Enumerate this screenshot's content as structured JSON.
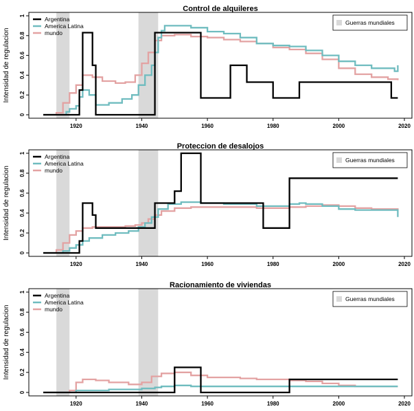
{
  "colors": {
    "argentina": "#000000",
    "latam": "#6fbcbf",
    "world": "#e3a2a2",
    "wars": "#d9d9d9"
  },
  "shared": {
    "x_ticks": [
      1920,
      1940,
      1960,
      1980,
      2000,
      2020
    ],
    "y_ticks": [
      "0",
      "0.2",
      "0.4",
      "0.6",
      "0.8",
      "1"
    ],
    "xlim": [
      1908,
      2022
    ],
    "ylim": [
      0,
      1
    ],
    "war_periods": [
      [
        1914,
        1918
      ],
      [
        1939,
        1945
      ]
    ],
    "wars_legend_label": "Guerras mundiales",
    "ylabel": "Intensidad de regulacion"
  },
  "chart_data": [
    {
      "type": "line",
      "title": "Control de alquileres",
      "ylabel": "Intensidad de regulacion",
      "xlim": [
        1908,
        2022
      ],
      "ylim": [
        0,
        1
      ],
      "legend": "top-left",
      "series": [
        {
          "name": "Argentina",
          "color": "#000000",
          "x": [
            1910,
            1920,
            1921,
            1922,
            1924,
            1925,
            1926,
            1943,
            1944,
            1957,
            1958,
            1964,
            1967,
            1972,
            1980,
            1988,
            2016,
            2018
          ],
          "y": [
            0,
            0,
            0.25,
            0.83,
            0.83,
            0.5,
            0,
            0,
            0.83,
            0.83,
            0.17,
            0.17,
            0.5,
            0.33,
            0.17,
            0.33,
            0.17,
            0.17
          ]
        },
        {
          "name": "America Latina",
          "color": "#6fbcbf",
          "x": [
            1910,
            1916,
            1917,
            1918,
            1920,
            1921,
            1922,
            1924,
            1926,
            1930,
            1934,
            1937,
            1939,
            1941,
            1943,
            1944,
            1945,
            1946,
            1947,
            1950,
            1955,
            1960,
            1965,
            1970,
            1975,
            1980,
            1985,
            1990,
            1995,
            2000,
            2005,
            2010,
            2015,
            2017,
            2018
          ],
          "y": [
            0,
            0,
            0.03,
            0.06,
            0.09,
            0.18,
            0.25,
            0.2,
            0.1,
            0.12,
            0.16,
            0.2,
            0.3,
            0.4,
            0.5,
            0.63,
            0.78,
            0.85,
            0.9,
            0.9,
            0.88,
            0.84,
            0.82,
            0.78,
            0.72,
            0.7,
            0.69,
            0.65,
            0.6,
            0.54,
            0.5,
            0.47,
            0.47,
            0.44,
            0.5
          ]
        },
        {
          "name": "mundo",
          "color": "#e3a2a2",
          "x": [
            1910,
            1914,
            1916,
            1918,
            1920,
            1922,
            1925,
            1928,
            1932,
            1935,
            1938,
            1940,
            1942,
            1944,
            1946,
            1950,
            1955,
            1960,
            1965,
            1970,
            1975,
            1980,
            1985,
            1990,
            1995,
            2000,
            2005,
            2010,
            2015,
            2018
          ],
          "y": [
            0,
            0.02,
            0.12,
            0.22,
            0.3,
            0.4,
            0.38,
            0.34,
            0.32,
            0.33,
            0.4,
            0.52,
            0.63,
            0.75,
            0.8,
            0.81,
            0.79,
            0.78,
            0.76,
            0.74,
            0.72,
            0.68,
            0.66,
            0.62,
            0.56,
            0.47,
            0.41,
            0.38,
            0.36,
            0.35
          ]
        }
      ]
    },
    {
      "type": "line",
      "title": "Proteccion de desalojos",
      "ylabel": "Intensidad de regulacion",
      "xlim": [
        1908,
        2022
      ],
      "ylim": [
        0,
        1
      ],
      "legend": "top-left",
      "series": [
        {
          "name": "Argentina",
          "color": "#000000",
          "x": [
            1910,
            1920,
            1921,
            1922,
            1924,
            1925,
            1926,
            1943,
            1944,
            1948,
            1950,
            1952,
            1957,
            1958,
            1976,
            1977,
            1985,
            2018
          ],
          "y": [
            0,
            0,
            0.12,
            0.5,
            0.5,
            0.38,
            0.25,
            0.25,
            0.5,
            0.5,
            0.62,
            1.0,
            1.0,
            0.5,
            0.5,
            0.25,
            0.75,
            0.75
          ]
        },
        {
          "name": "America Latina",
          "color": "#6fbcbf",
          "x": [
            1910,
            1916,
            1918,
            1920,
            1922,
            1924,
            1928,
            1932,
            1936,
            1939,
            1941,
            1943,
            1945,
            1948,
            1952,
            1958,
            1965,
            1975,
            1980,
            1985,
            1988,
            1990,
            1995,
            2000,
            2005,
            2010,
            2018
          ],
          "y": [
            0,
            0.02,
            0.05,
            0.08,
            0.12,
            0.15,
            0.18,
            0.2,
            0.22,
            0.26,
            0.3,
            0.36,
            0.44,
            0.49,
            0.51,
            0.5,
            0.49,
            0.47,
            0.47,
            0.49,
            0.5,
            0.49,
            0.47,
            0.44,
            0.43,
            0.43,
            0.36
          ]
        },
        {
          "name": "mundo",
          "color": "#e3a2a2",
          "x": [
            1910,
            1914,
            1916,
            1918,
            1920,
            1922,
            1925,
            1930,
            1935,
            1938,
            1940,
            1942,
            1944,
            1946,
            1950,
            1955,
            1960,
            1965,
            1970,
            1975,
            1980,
            1985,
            1990,
            1995,
            2000,
            2005,
            2010,
            2018
          ],
          "y": [
            0,
            0.03,
            0.1,
            0.18,
            0.22,
            0.25,
            0.26,
            0.26,
            0.27,
            0.28,
            0.3,
            0.34,
            0.38,
            0.42,
            0.45,
            0.46,
            0.46,
            0.46,
            0.46,
            0.45,
            0.45,
            0.46,
            0.47,
            0.48,
            0.47,
            0.45,
            0.44,
            0.43
          ]
        }
      ]
    },
    {
      "type": "line",
      "title": "Racionamiento de viviendas",
      "ylabel": "Intensidad de regulacion",
      "xlim": [
        1908,
        2022
      ],
      "ylim": [
        0,
        1
      ],
      "legend": "top-left",
      "series": [
        {
          "name": "Argentina",
          "color": "#000000",
          "x": [
            1910,
            1949,
            1950,
            1957,
            1958,
            1984,
            1985,
            2018
          ],
          "y": [
            0,
            0,
            0.25,
            0.25,
            0,
            0,
            0.13,
            0.13
          ]
        },
        {
          "name": "America Latina",
          "color": "#6fbcbf",
          "x": [
            1910,
            1918,
            1920,
            1930,
            1940,
            1944,
            1946,
            1950,
            1955,
            1960,
            1970,
            1985,
            1990,
            2000,
            2010,
            2018
          ],
          "y": [
            0,
            0,
            0.02,
            0.03,
            0.04,
            0.05,
            0.06,
            0.07,
            0.06,
            0.06,
            0.06,
            0.06,
            0.06,
            0.06,
            0.06,
            0.06
          ]
        },
        {
          "name": "mundo",
          "color": "#e3a2a2",
          "x": [
            1910,
            1918,
            1920,
            1922,
            1926,
            1930,
            1936,
            1940,
            1943,
            1946,
            1950,
            1955,
            1960,
            1965,
            1970,
            1975,
            1980,
            1985,
            1990,
            1995,
            2000,
            2005,
            2010,
            2018
          ],
          "y": [
            0,
            0.02,
            0.1,
            0.13,
            0.12,
            0.1,
            0.08,
            0.1,
            0.16,
            0.19,
            0.2,
            0.17,
            0.15,
            0.15,
            0.14,
            0.13,
            0.13,
            0.12,
            0.11,
            0.09,
            0.07,
            0.06,
            0.06,
            0.06
          ]
        }
      ]
    }
  ]
}
